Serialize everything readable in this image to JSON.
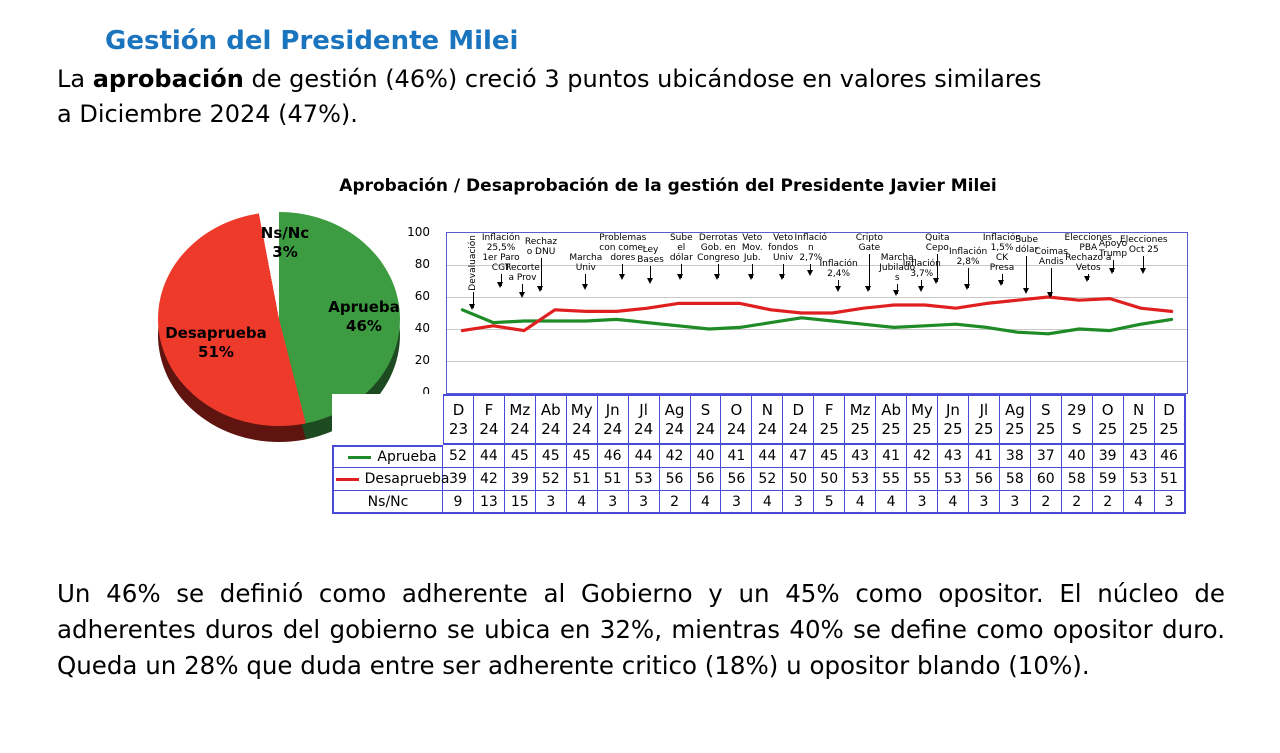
{
  "page": {
    "accent_color": "#1b74be",
    "title": "Gestión del Presidente Milei",
    "intro": {
      "pre": "La ",
      "bold": "aprobación",
      "post": " de gestión (46%) creció 3 puntos ubicándose en valores similares\na Diciembre 2024 (47%)."
    },
    "outro": "Un 46% se definió como adherente al Gobierno y un 45% como opositor. El núcleo de adherentes duros del gobierno se ubica en 32%, mientras 40% se define como opositor duro. Queda un 28% que duda entre ser adherente critico (18%) u opositor blando (10%)."
  },
  "chart_data": [
    {
      "type": "pie",
      "style": "3d",
      "slices": [
        {
          "label": "Aprueba",
          "value": 46,
          "color": "#3d9c42",
          "shadow": "#1d4a20"
        },
        {
          "label": "Desaprueba",
          "value": 51,
          "color": "#ee3a2b",
          "shadow": "#5f1410"
        },
        {
          "label": "Ns/Nc",
          "value": 3,
          "color": "#ffffff",
          "shadow": "#b9b9b9"
        }
      ]
    },
    {
      "type": "line",
      "title": "Aprobación / Desaprobación de la gestión del Presidente Javier Milei",
      "ylim": [
        0,
        100
      ],
      "yticks": [
        0,
        20,
        40,
        60,
        80,
        100
      ],
      "grid": true,
      "legend_position": "table-left",
      "categories": [
        [
          "D",
          "23"
        ],
        [
          "F",
          "24"
        ],
        [
          "Mz",
          "24"
        ],
        [
          "Ab",
          "24"
        ],
        [
          "My",
          "24"
        ],
        [
          "Jn",
          "24"
        ],
        [
          "Jl",
          "24"
        ],
        [
          "Ag",
          "24"
        ],
        [
          "S",
          "24"
        ],
        [
          "O",
          "24"
        ],
        [
          "N",
          "24"
        ],
        [
          "D",
          "24"
        ],
        [
          "F",
          "25"
        ],
        [
          "Mz",
          "25"
        ],
        [
          "Ab",
          "25"
        ],
        [
          "My",
          "25"
        ],
        [
          "Jn",
          "25"
        ],
        [
          "Jl",
          "25"
        ],
        [
          "Ag",
          "25"
        ],
        [
          "S",
          "25"
        ],
        [
          "29",
          "S"
        ],
        [
          "O",
          "25"
        ],
        [
          "N",
          "25"
        ],
        [
          "D",
          "25"
        ]
      ],
      "series": [
        {
          "name": "Aprueba",
          "color": "#1e8b27",
          "values": [
            52,
            44,
            45,
            45,
            45,
            46,
            44,
            42,
            40,
            41,
            44,
            47,
            45,
            43,
            41,
            42,
            43,
            41,
            38,
            37,
            40,
            39,
            43,
            46
          ]
        },
        {
          "name": "Desaprueba",
          "color": "#e02020",
          "values": [
            39,
            42,
            39,
            52,
            51,
            51,
            53,
            56,
            56,
            56,
            52,
            50,
            50,
            53,
            55,
            55,
            53,
            56,
            58,
            60,
            58,
            59,
            53,
            51
          ]
        },
        {
          "name": "Ns/Nc",
          "color": null,
          "values": [
            9,
            13,
            15,
            3,
            4,
            3,
            3,
            2,
            4,
            3,
            4,
            3,
            5,
            4,
            4,
            3,
            4,
            3,
            3,
            2,
            2,
            2,
            4,
            3
          ]
        }
      ],
      "annotations": [
        {
          "lines": [
            "Devaluación"
          ],
          "col": 0.35,
          "top": 2,
          "arrow": 16,
          "vertical": true
        },
        {
          "lines": [
            "Inflación",
            "25,5%",
            "1er Paro",
            "CGT"
          ],
          "col": 1.25,
          "top": 0,
          "arrow": 12
        },
        {
          "lines": [
            "Rechaz",
            "o DNU"
          ],
          "col": 2.55,
          "top": 4,
          "arrow": 32
        },
        {
          "lines": [
            "Recorte",
            "a Prov"
          ],
          "col": 1.95,
          "top": 30,
          "arrow": 12
        },
        {
          "lines": [
            "Marcha",
            "Univ"
          ],
          "col": 4.0,
          "top": 20,
          "arrow": 14
        },
        {
          "lines": [
            "Problemas",
            "con come-",
            "dores"
          ],
          "col": 5.2,
          "top": 0,
          "arrow": 14
        },
        {
          "lines": [
            "Ley",
            "Bases"
          ],
          "col": 6.1,
          "top": 12,
          "arrow": 16
        },
        {
          "lines": [
            "Sube",
            "el",
            "dólar"
          ],
          "col": 7.1,
          "top": 0,
          "arrow": 14
        },
        {
          "lines": [
            "Derrotas",
            "Gob. en",
            "Congreso"
          ],
          "col": 8.3,
          "top": 0,
          "arrow": 14
        },
        {
          "lines": [
            "Veto",
            "Mov.",
            "Jub."
          ],
          "col": 9.4,
          "top": 0,
          "arrow": 14
        },
        {
          "lines": [
            "Veto",
            "fondos",
            "Univ"
          ],
          "col": 10.4,
          "top": 0,
          "arrow": 14
        },
        {
          "lines": [
            "Inflació",
            "n",
            "2,7%"
          ],
          "col": 11.3,
          "top": 0,
          "arrow": 10
        },
        {
          "lines": [
            "Inflación",
            "2,4%"
          ],
          "col": 12.2,
          "top": 26,
          "arrow": 10
        },
        {
          "lines": [
            "Cripto",
            "Gate"
          ],
          "col": 13.2,
          "top": 0,
          "arrow": 36
        },
        {
          "lines": [
            "Marcha",
            "Jubilado",
            "s"
          ],
          "col": 14.1,
          "top": 20,
          "arrow": 10
        },
        {
          "lines": [
            "Inflación",
            "3,7%"
          ],
          "col": 14.9,
          "top": 26,
          "arrow": 10
        },
        {
          "lines": [
            "Quita",
            "Cepo"
          ],
          "col": 15.4,
          "top": 0,
          "arrow": 28
        },
        {
          "lines": [
            "Inflación",
            "2,8%"
          ],
          "col": 16.4,
          "top": 14,
          "arrow": 20
        },
        {
          "lines": [
            "Inflación",
            "1,5%",
            "CK",
            "Presa"
          ],
          "col": 17.5,
          "top": 0,
          "arrow": 10
        },
        {
          "lines": [
            "Sube",
            "dólar"
          ],
          "col": 18.3,
          "top": 2,
          "arrow": 36
        },
        {
          "lines": [
            "Coimas",
            "Andis"
          ],
          "col": 19.1,
          "top": 14,
          "arrow": 28
        },
        {
          "lines": [
            "Elecciones",
            "PBA",
            "Rechazo a",
            "Vetos"
          ],
          "col": 20.3,
          "top": 0,
          "arrow": 6
        },
        {
          "lines": [
            "Apoyo",
            "Trump"
          ],
          "col": 21.1,
          "top": 6,
          "arrow": 12
        },
        {
          "lines": [
            "Elecciones",
            "Oct 25"
          ],
          "col": 22.1,
          "top": 2,
          "arrow": 16
        }
      ]
    }
  ]
}
